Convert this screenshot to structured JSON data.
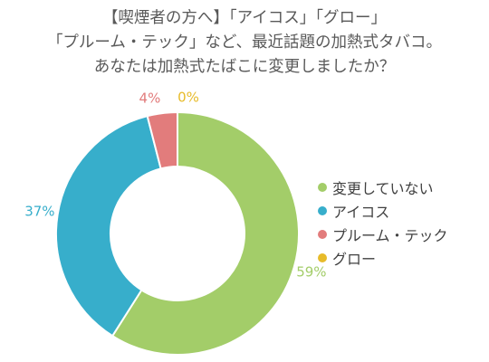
{
  "title": {
    "lines": [
      "【喫煙者の方へ】「アイコス」「グロー」",
      "「プルーム・テック」など、最近話題の加熱式タバコ。",
      "あなたは加熱式たばこに変更しましたか？"
    ]
  },
  "chart_data": {
    "type": "pie",
    "variant": "donut",
    "categories": [
      "変更していない",
      "アイコス",
      "プルーム・テック",
      "グロー"
    ],
    "values": [
      59,
      37,
      4,
      0
    ],
    "labels": [
      "59%",
      "37%",
      "4%",
      "0%"
    ],
    "unit": "%",
    "colors": [
      "#a3cd69",
      "#37aecb",
      "#e27c7c",
      "#e7bb2a"
    ],
    "start_angle": "top, clockwise",
    "legend": "right"
  }
}
